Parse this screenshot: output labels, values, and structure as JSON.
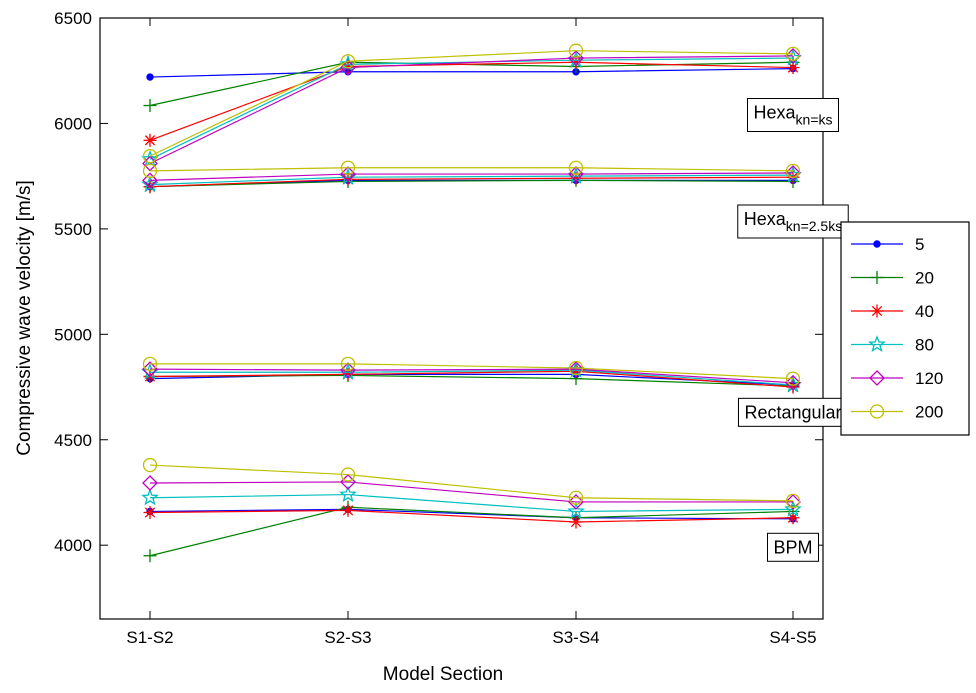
{
  "chart_data": {
    "type": "line",
    "xlabel": "Model Section",
    "ylabel": "Compressive wave velocity [m/s]",
    "categories": [
      "S1-S2",
      "S2-S3",
      "S3-S4",
      "S4-S5"
    ],
    "ylim": [
      3650,
      6500
    ],
    "yticks": [
      4000,
      4500,
      5000,
      5500,
      6000,
      6500
    ],
    "grid": false,
    "legend_position": "right",
    "series_styles": [
      {
        "name": "5",
        "color": "#0000ff",
        "marker": "dot"
      },
      {
        "name": "20",
        "color": "#008000",
        "marker": "plus"
      },
      {
        "name": "40",
        "color": "#ff0000",
        "marker": "asterisk"
      },
      {
        "name": "80",
        "color": "#00bfbf",
        "marker": "star"
      },
      {
        "name": "120",
        "color": "#bf00bf",
        "marker": "diamond"
      },
      {
        "name": "200",
        "color": "#bfbf00",
        "marker": "circle"
      }
    ],
    "groups": [
      {
        "label": "Hexa",
        "label_sub": "kn=ks",
        "anchor": {
          "x": 3.0,
          "y": 6040
        },
        "values": {
          "5": [
            6220,
            6245,
            6245,
            6260
          ],
          "20": [
            6085,
            6290,
            6270,
            6290
          ],
          "40": [
            5920,
            6270,
            6290,
            6265
          ],
          "80": [
            5830,
            6280,
            6300,
            6310
          ],
          "120": [
            5810,
            6265,
            6310,
            6320
          ],
          "200": [
            5845,
            6295,
            6345,
            6330
          ]
        }
      },
      {
        "label": "Hexa",
        "label_sub": "kn=2.5ks",
        "anchor": {
          "x": 3.0,
          "y": 5535
        },
        "values": {
          "5": [
            5700,
            5730,
            5730,
            5730
          ],
          "20": [
            5700,
            5725,
            5730,
            5725
          ],
          "40": [
            5700,
            5735,
            5740,
            5745
          ],
          "80": [
            5710,
            5745,
            5750,
            5755
          ],
          "120": [
            5730,
            5760,
            5760,
            5765
          ],
          "200": [
            5775,
            5790,
            5790,
            5775
          ]
        }
      },
      {
        "label": "Rectangular",
        "label_sub": "",
        "anchor": {
          "x": 3.0,
          "y": 4630
        },
        "values": {
          "5": [
            4790,
            4810,
            4810,
            4760
          ],
          "20": [
            4800,
            4805,
            4790,
            4755
          ],
          "40": [
            4800,
            4810,
            4825,
            4750
          ],
          "80": [
            4820,
            4820,
            4830,
            4760
          ],
          "120": [
            4835,
            4830,
            4835,
            4770
          ],
          "200": [
            4860,
            4860,
            4840,
            4790
          ]
        }
      },
      {
        "label": "BPM",
        "label_sub": "",
        "anchor": {
          "x": 3.0,
          "y": 3990
        },
        "values": {
          "5": [
            4160,
            4170,
            4130,
            4125
          ],
          "20": [
            3950,
            4180,
            4130,
            4160
          ],
          "40": [
            4155,
            4165,
            4110,
            4130
          ],
          "80": [
            4225,
            4240,
            4160,
            4170
          ],
          "120": [
            4295,
            4300,
            4205,
            4205
          ],
          "200": [
            4380,
            4335,
            4225,
            4210
          ]
        }
      }
    ]
  }
}
